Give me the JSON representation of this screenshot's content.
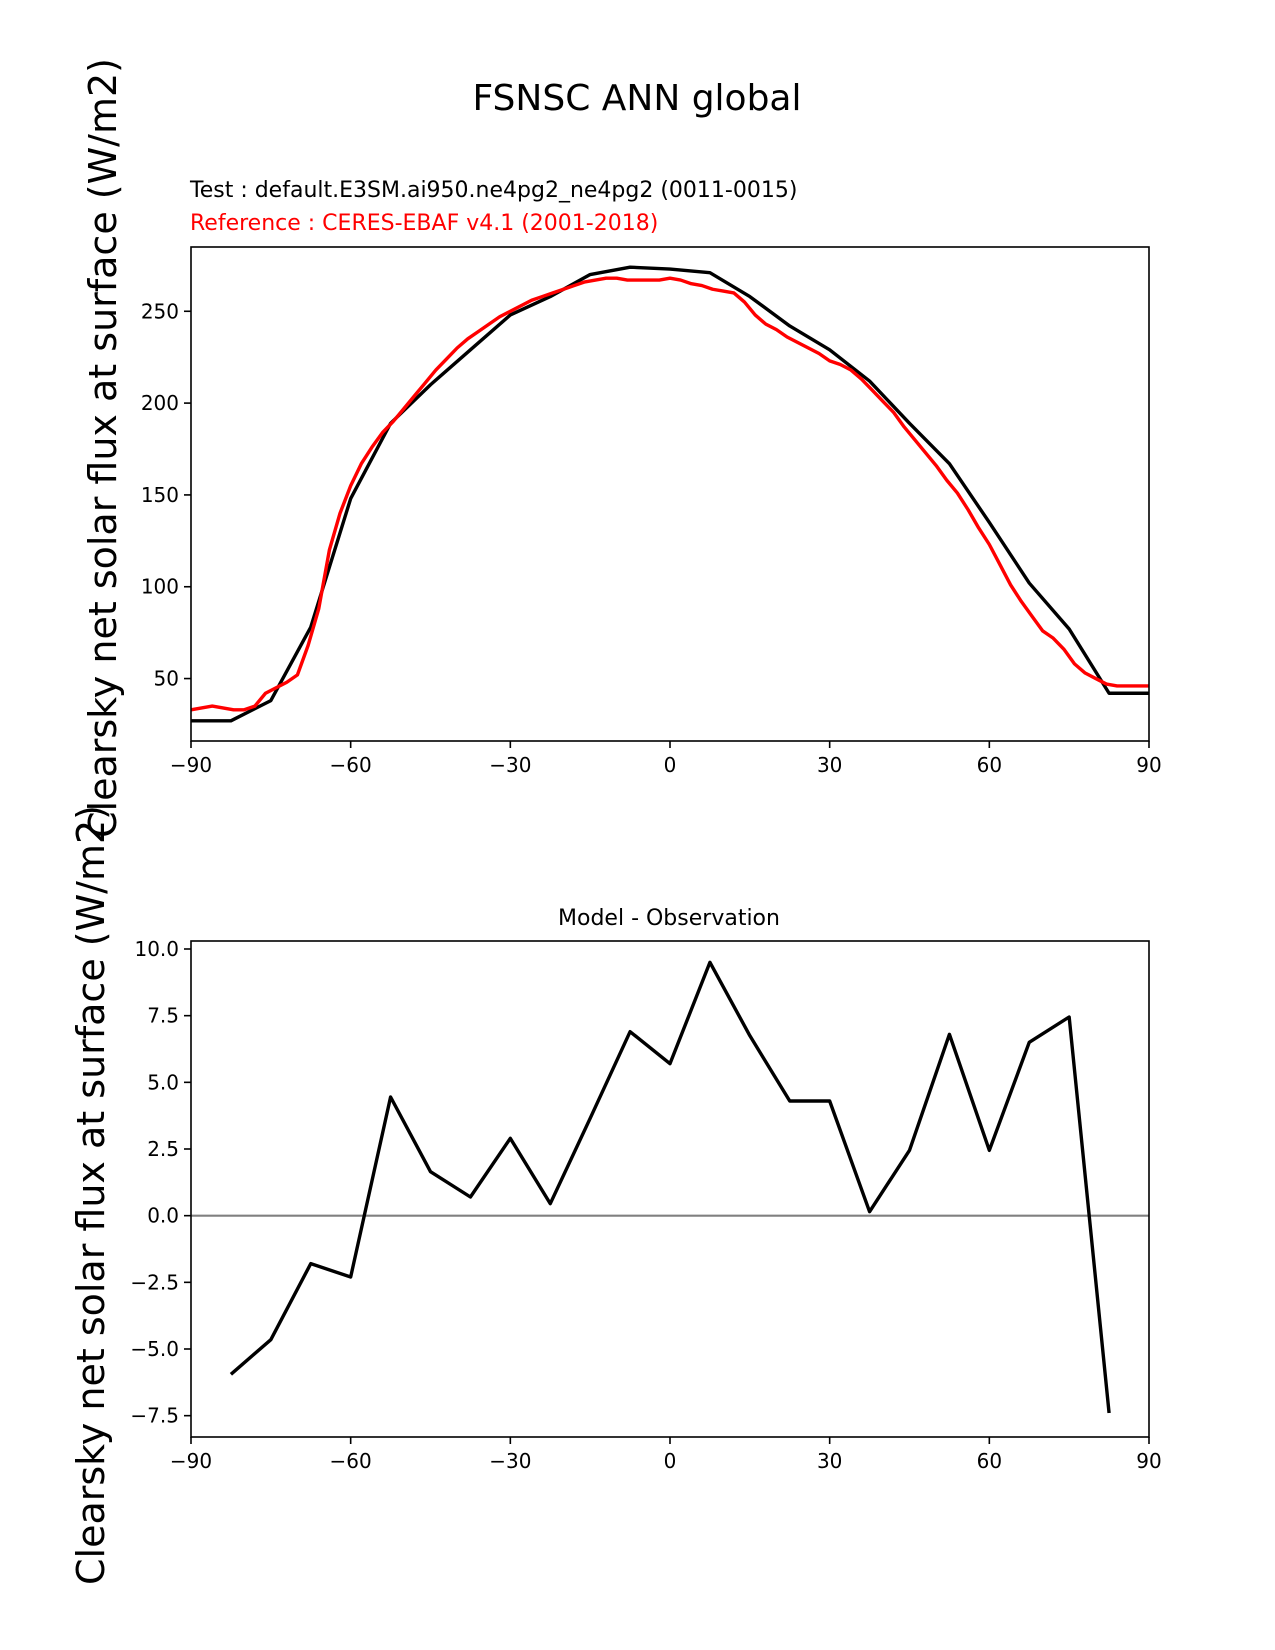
{
  "title": "FSNSC ANN global",
  "chart_data": [
    {
      "type": "line",
      "subtitle_test": "Test : default.E3SM.ai950.ne4pg2_ne4pg2 (0011-0015)",
      "subtitle_ref": "Reference : CERES-EBAF v4.1 (2001-2018)",
      "ylabel": "Clearsky net solar flux at surface (W/m2)",
      "xlim": [
        -90,
        90
      ],
      "ylim": [
        16,
        285
      ],
      "xticks": [
        -90,
        -60,
        -30,
        0,
        30,
        60,
        90
      ],
      "xtick_labels": [
        "−90",
        "−60",
        "−30",
        "0",
        "30",
        "60",
        "90"
      ],
      "yticks": [
        50,
        100,
        150,
        200,
        250
      ],
      "ytick_labels": [
        "50",
        "100",
        "150",
        "200",
        "250"
      ],
      "series": [
        {
          "name": "test",
          "color": "#000000",
          "x": [
            -90,
            -82.5,
            -75,
            -67.5,
            -60,
            -52.5,
            -45,
            -37.5,
            -30,
            -22.5,
            -15,
            -7.5,
            0,
            7.5,
            15,
            22.5,
            30,
            37.5,
            45,
            52.5,
            60,
            67.5,
            75,
            82.5,
            90
          ],
          "y": [
            27,
            27,
            38,
            78,
            148,
            189,
            210,
            229,
            248,
            258,
            270,
            274,
            273,
            271,
            258,
            242,
            229,
            212,
            189,
            167,
            135,
            102,
            77,
            42,
            42
          ]
        },
        {
          "name": "reference",
          "color": "#ff0000",
          "x": [
            -90,
            -88,
            -86,
            -84,
            -82,
            -80,
            -78,
            -76,
            -74,
            -72,
            -70,
            -68,
            -66,
            -64,
            -62,
            -60,
            -58,
            -56,
            -54,
            -52,
            -50,
            -48,
            -46,
            -44,
            -42,
            -40,
            -38,
            -36,
            -34,
            -32,
            -30,
            -28,
            -26,
            -24,
            -22,
            -20,
            -18,
            -16,
            -14,
            -12,
            -10,
            -8,
            -6,
            -4,
            -2,
            0,
            2,
            4,
            6,
            8,
            10,
            12,
            14,
            16,
            18,
            20,
            22,
            24,
            26,
            28,
            30,
            32,
            34,
            36,
            38,
            40,
            42,
            44,
            46,
            48,
            50,
            52,
            54,
            56,
            58,
            60,
            62,
            64,
            66,
            68,
            70,
            72,
            74,
            76,
            78,
            80,
            82,
            84,
            86,
            88,
            90
          ],
          "y": [
            33,
            34,
            35,
            34,
            33,
            33,
            35,
            42,
            45,
            48,
            52,
            68,
            88,
            120,
            140,
            155,
            167,
            176,
            184,
            190,
            197,
            204,
            211,
            218,
            224,
            230,
            235,
            239,
            243,
            247,
            250,
            253,
            256,
            258,
            260,
            262,
            264,
            266,
            267,
            268,
            268,
            267,
            267,
            267,
            267,
            268,
            267,
            265,
            264,
            262,
            261,
            260,
            255,
            248,
            243,
            240,
            236,
            233,
            230,
            227,
            223,
            221,
            218,
            213,
            207,
            201,
            195,
            187,
            180,
            173,
            166,
            158,
            151,
            142,
            132,
            123,
            112,
            101,
            92,
            84,
            76,
            72,
            66,
            58,
            53,
            50,
            47,
            46,
            46,
            46,
            46
          ]
        }
      ]
    },
    {
      "type": "line",
      "title": "Model - Observation",
      "ylabel": "Clearsky net solar flux at surface (W/m2)",
      "xlim": [
        -90,
        90
      ],
      "ylim": [
        -8.3,
        10.3
      ],
      "xticks": [
        -90,
        -60,
        -30,
        0,
        30,
        60,
        90
      ],
      "xtick_labels": [
        "−90",
        "−60",
        "−30",
        "0",
        "30",
        "60",
        "90"
      ],
      "yticks": [
        -7.5,
        -5.0,
        -2.5,
        0.0,
        2.5,
        5.0,
        7.5,
        10.0
      ],
      "ytick_labels": [
        "−7.5",
        "−5.0",
        "−2.5",
        "0.0",
        "2.5",
        "5.0",
        "7.5",
        "10.0"
      ],
      "zero_line": 0,
      "zero_line_color": "#808080",
      "series": [
        {
          "name": "difference",
          "color": "#000000",
          "x": [
            -82.5,
            -75,
            -67.5,
            -60,
            -52.5,
            -45,
            -37.5,
            -30,
            -22.5,
            -15,
            -7.5,
            0,
            7.5,
            15,
            22.5,
            30,
            37.5,
            45,
            52.5,
            60,
            67.5,
            75,
            82.5
          ],
          "y": [
            -5.95,
            -4.65,
            -1.8,
            -2.3,
            4.45,
            1.65,
            0.7,
            2.9,
            0.45,
            3.65,
            6.9,
            5.7,
            9.5,
            6.75,
            4.3,
            4.3,
            0.15,
            2.45,
            6.8,
            2.45,
            6.5,
            7.45,
            -7.4
          ]
        }
      ]
    }
  ]
}
